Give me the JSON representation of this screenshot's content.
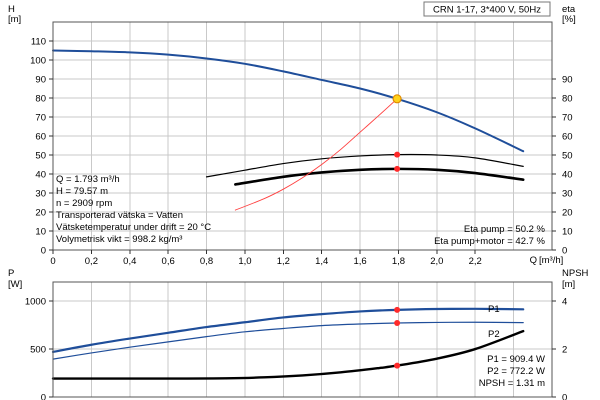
{
  "chart_data": [
    {
      "type": "line",
      "title": "CRN 1-17, 3*400 V, 50Hz",
      "x_unit": "Q [m³/h]",
      "x_label": "Q",
      "x_unit_label": "[m³/h]",
      "xlim": [
        0,
        2.6
      ],
      "x_ticks": [
        "0",
        "0,2",
        "0,4",
        "0,6",
        "0,8",
        "1,0",
        "1,2",
        "1,4",
        "1,6",
        "1,8",
        "2,0",
        "2,2"
      ],
      "x_tick_values": [
        0,
        0.2,
        0.4,
        0.6,
        0.8,
        1.0,
        1.2,
        1.4,
        1.6,
        1.8,
        2.0,
        2.2
      ],
      "y_left": {
        "label": "H",
        "unit": "[m]",
        "ylim": [
          0,
          120
        ],
        "ticks": [
          0,
          10,
          20,
          30,
          40,
          50,
          60,
          70,
          80,
          90,
          100,
          110
        ]
      },
      "y_right": {
        "label": "eta",
        "unit": "[%]",
        "ylim": [
          0,
          120
        ],
        "ticks": [
          0,
          10,
          20,
          30,
          40,
          50,
          60,
          70,
          80,
          90
        ]
      },
      "grid": true,
      "series": [
        {
          "name": "H",
          "axis": "left",
          "color": "#1f4e9a",
          "x": [
            0,
            0.2,
            0.4,
            0.6,
            0.8,
            1.0,
            1.2,
            1.4,
            1.6,
            1.793,
            2.0,
            2.2,
            2.45
          ],
          "y": [
            105,
            104.6,
            104,
            102.8,
            100.8,
            98,
            94,
            89.5,
            85,
            79.57,
            72.5,
            64,
            52
          ]
        },
        {
          "name": "Eta pump",
          "axis": "right",
          "color": "#000000",
          "width": 1.2,
          "x": [
            0.8,
            1.0,
            1.2,
            1.4,
            1.6,
            1.793,
            2.0,
            2.2,
            2.45
          ],
          "y": [
            38.5,
            42,
            45.5,
            48,
            49.5,
            50.2,
            50,
            48.5,
            44
          ]
        },
        {
          "name": "Eta pump+motor",
          "axis": "right",
          "color": "#000000",
          "width": 2.6,
          "x": [
            0.95,
            1.2,
            1.4,
            1.6,
            1.793,
            2.0,
            2.2,
            2.45
          ],
          "y": [
            34.5,
            38.5,
            40.8,
            42.2,
            42.7,
            42.2,
            40.5,
            37
          ]
        },
        {
          "name": "System curve",
          "axis": "left",
          "color": "#ff4040",
          "width": 0.9,
          "x": [
            0.95,
            1.1,
            1.2,
            1.3,
            1.4,
            1.5,
            1.6,
            1.7,
            1.793
          ],
          "y": [
            21,
            27,
            32,
            38,
            45,
            53,
            62,
            71,
            79.57
          ]
        }
      ],
      "markers": [
        {
          "series": "H",
          "x": 1.793,
          "y": 79.57,
          "color": "#ffd21a",
          "stroke": "#e08a00",
          "r": 4
        },
        {
          "series": "Eta pump",
          "x": 1.793,
          "y": 50.2,
          "color": "#ff2a2a",
          "r": 3
        },
        {
          "series": "Eta pump+motor",
          "x": 1.793,
          "y": 42.7,
          "color": "#ff2a2a",
          "r": 3
        }
      ],
      "info_left": [
        "Q = 1.793 m³/h",
        "H = 79.57 m",
        "n = 2909 rpm",
        "Transporterad vätska = Vatten",
        "Vätsketemperatur under drift = 20 °C",
        "Volymetrisk vikt = 998.2 kg/m³"
      ],
      "info_right": [
        "Eta pump = 50.2 %",
        "Eta pump+motor = 42.7 %"
      ]
    },
    {
      "type": "line",
      "xlim": [
        0,
        2.6
      ],
      "y_left": {
        "label": "P",
        "unit": "[W]",
        "ylim": [
          0,
          1200
        ],
        "ticks": [
          0,
          500,
          1000
        ]
      },
      "y_right": {
        "label": "NPSH",
        "unit": "[m]",
        "ylim": [
          0,
          4.8
        ],
        "ticks": [
          0,
          2,
          4
        ]
      },
      "grid": true,
      "series": [
        {
          "name": "P1",
          "axis": "left",
          "color": "#1f4e9a",
          "width": 2.2,
          "x": [
            0,
            0.2,
            0.4,
            0.6,
            0.8,
            1.0,
            1.2,
            1.4,
            1.6,
            1.793,
            2.0,
            2.2,
            2.45
          ],
          "y": [
            470,
            545,
            610,
            670,
            730,
            780,
            830,
            865,
            893,
            909.4,
            918,
            920,
            915
          ]
        },
        {
          "name": "P2",
          "axis": "left",
          "color": "#1f4e9a",
          "width": 1.2,
          "x": [
            0,
            0.2,
            0.4,
            0.6,
            0.8,
            1.0,
            1.2,
            1.4,
            1.6,
            1.793,
            2.0,
            2.2,
            2.45
          ],
          "y": [
            395,
            460,
            520,
            575,
            630,
            680,
            715,
            745,
            762,
            772.2,
            778,
            780,
            776
          ]
        },
        {
          "name": "NPSH",
          "axis": "right",
          "color": "#000000",
          "width": 2.4,
          "x": [
            0,
            0.4,
            0.7,
            0.9,
            1.1,
            1.3,
            1.5,
            1.7,
            1.793,
            2.0,
            2.2,
            2.45
          ],
          "y": [
            0.77,
            0.77,
            0.77,
            0.78,
            0.82,
            0.9,
            1.03,
            1.21,
            1.31,
            1.6,
            2.0,
            2.75
          ]
        }
      ],
      "markers": [
        {
          "series": "P1",
          "x": 1.793,
          "y": 909.4,
          "color": "#ff2a2a",
          "r": 3
        },
        {
          "series": "P2",
          "x": 1.793,
          "y": 772.2,
          "color": "#ff2a2a",
          "r": 3
        },
        {
          "series": "NPSH",
          "x": 1.793,
          "y": 1.31,
          "color": "#ff2a2a",
          "r": 3
        }
      ],
      "series_labels": [
        "P1",
        "P2"
      ],
      "info_right": [
        "P1 = 909.4 W",
        "P2 = 772.2 W",
        "NPSH = 1.31 m"
      ]
    }
  ]
}
